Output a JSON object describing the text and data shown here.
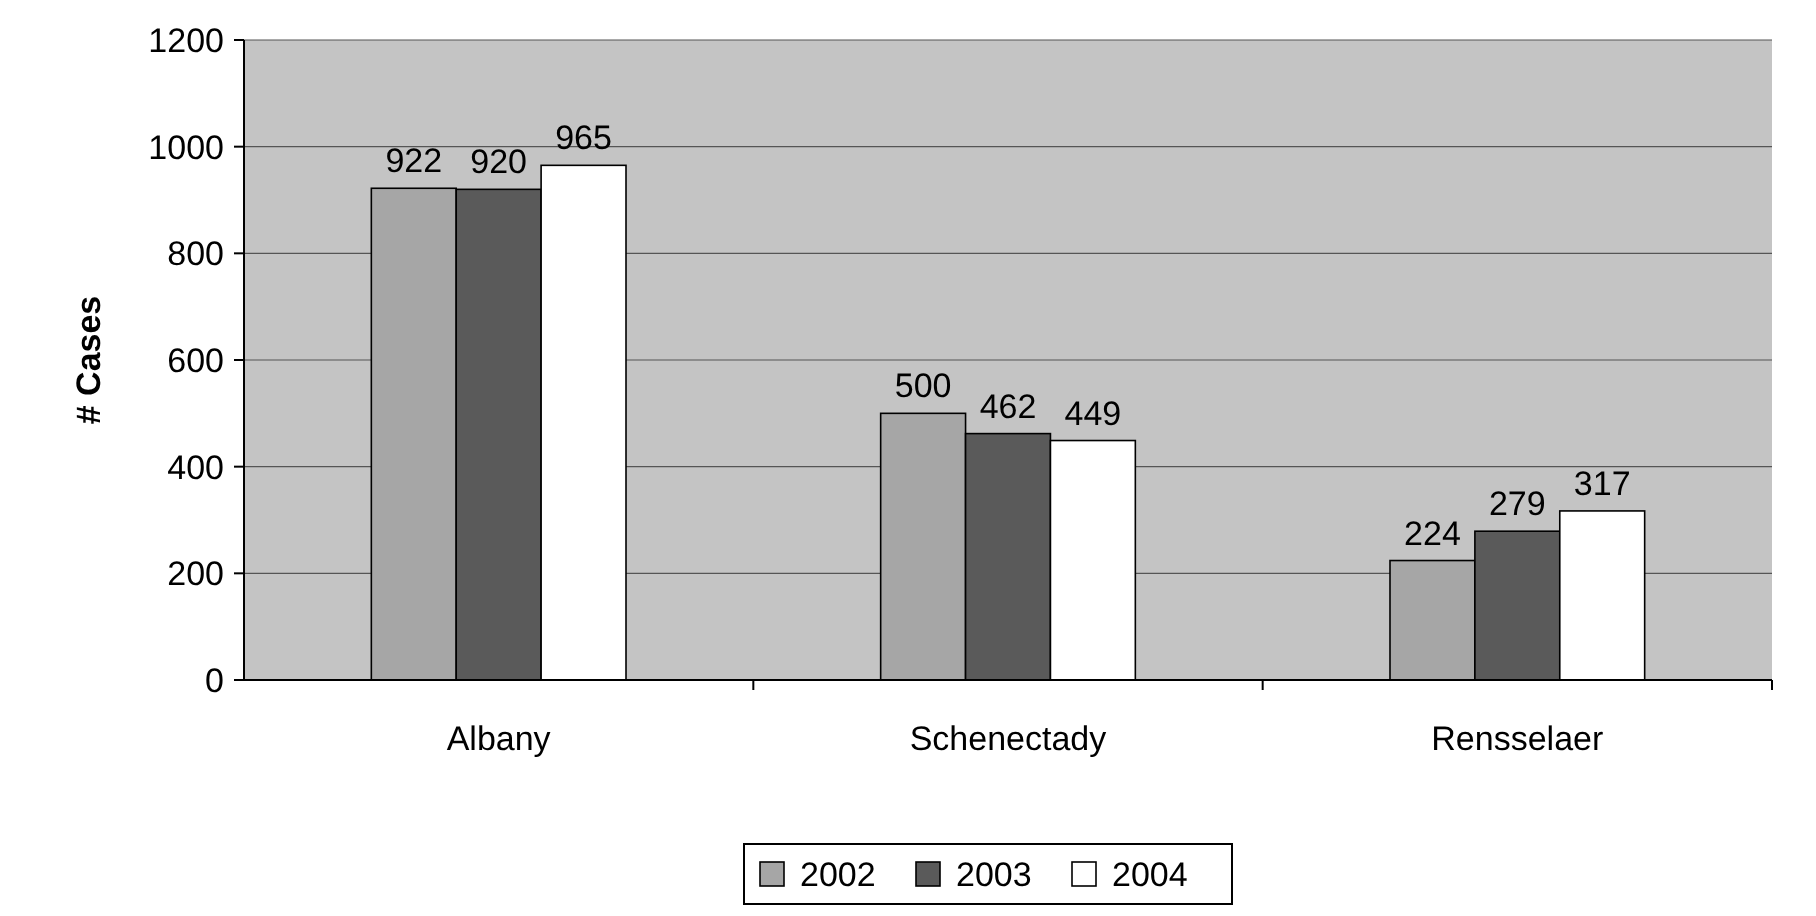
{
  "chart_data": {
    "type": "bar",
    "ylabel": "# Cases",
    "categories": [
      "Albany",
      "Schenectady",
      "Rensselaer"
    ],
    "series": [
      {
        "name": "2002",
        "color": "#a6a6a6",
        "values": [
          922,
          500,
          224
        ]
      },
      {
        "name": "2003",
        "color": "#5a5a5a",
        "values": [
          920,
          462,
          279
        ]
      },
      {
        "name": "2004",
        "color": "#ffffff",
        "values": [
          965,
          449,
          317
        ]
      }
    ],
    "ylim": [
      0,
      1200
    ],
    "yticks": [
      0,
      200,
      400,
      600,
      800,
      1000,
      1200
    ],
    "grid": "y",
    "legend": "bottom",
    "data_labels": true
  }
}
